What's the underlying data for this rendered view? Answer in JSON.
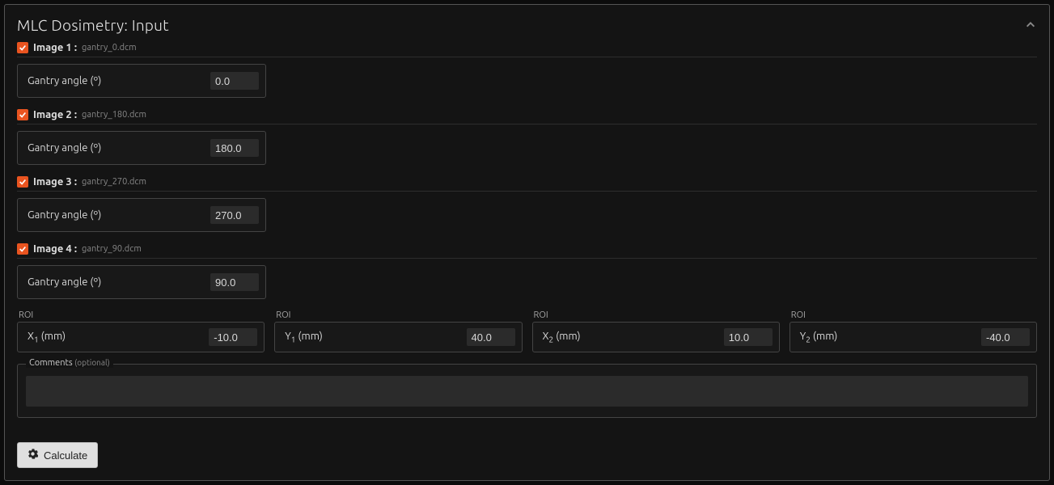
{
  "panel": {
    "title": "MLC Dosimetry: Input"
  },
  "colors": {
    "accent": "#e95420",
    "bg": "#141414",
    "border": "#444",
    "input_bg": "#2b2b2b"
  },
  "images": [
    {
      "label": "Image 1 :",
      "filename": "gantry_0.dcm",
      "checked": true,
      "angle_label": "Gantry angle (º)",
      "angle_value": "0.0"
    },
    {
      "label": "Image 2 :",
      "filename": "gantry_180.dcm",
      "checked": true,
      "angle_label": "Gantry angle (º)",
      "angle_value": "180.0"
    },
    {
      "label": "Image 3 :",
      "filename": "gantry_270.dcm",
      "checked": true,
      "angle_label": "Gantry angle (º)",
      "angle_value": "270.0"
    },
    {
      "label": "Image 4 :",
      "filename": "gantry_90.dcm",
      "checked": true,
      "angle_label": "Gantry angle (º)",
      "angle_value": "90.0"
    }
  ],
  "roi": {
    "legend": "ROI",
    "fields": [
      {
        "label_pre": "X",
        "label_sub": "1",
        "label_post": " (mm)",
        "value": "-10.0"
      },
      {
        "label_pre": "Y",
        "label_sub": "1",
        "label_post": " (mm)",
        "value": "40.0"
      },
      {
        "label_pre": "X",
        "label_sub": "2",
        "label_post": " (mm)",
        "value": "10.0"
      },
      {
        "label_pre": "Y",
        "label_sub": "2",
        "label_post": " (mm)",
        "value": "-40.0"
      }
    ]
  },
  "comments": {
    "legend": "Comments",
    "optional": "(optional)",
    "value": ""
  },
  "buttons": {
    "calculate": "Calculate"
  }
}
